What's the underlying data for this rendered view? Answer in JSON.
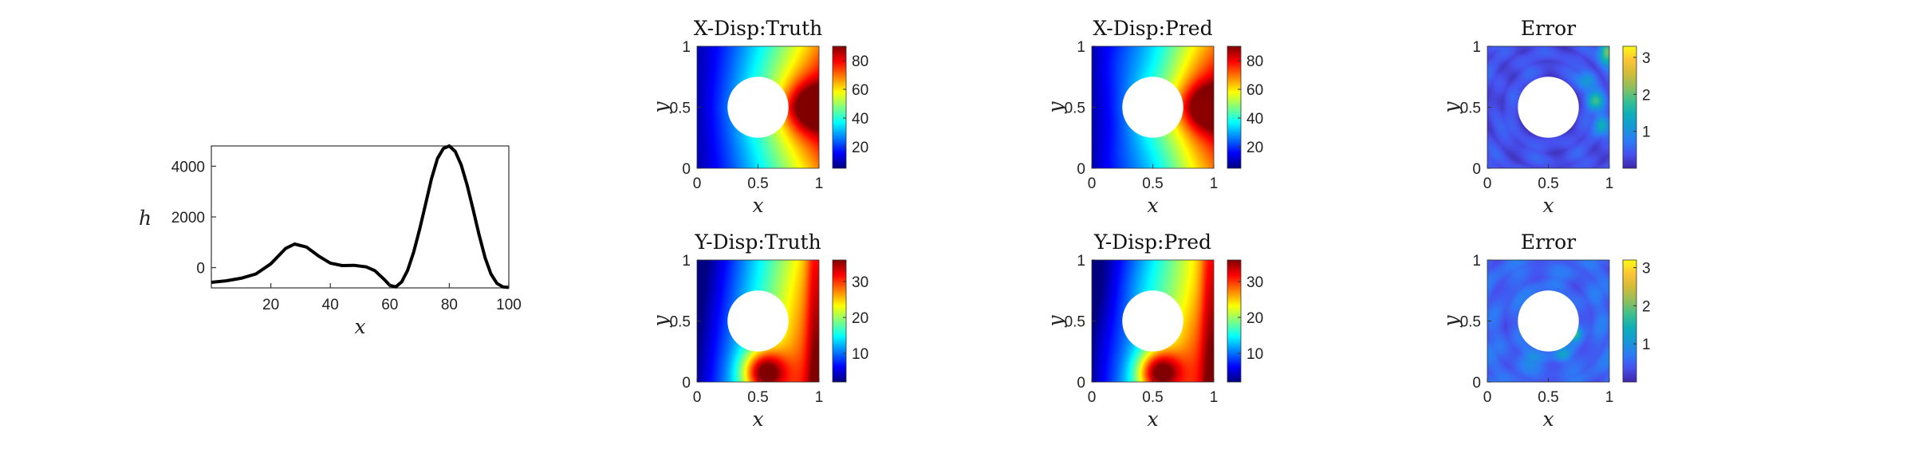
{
  "colors": {
    "line": "#000000",
    "axis": "#333333",
    "hole": "#ffffff",
    "background": "#ffffff"
  },
  "chart_data": [
    {
      "id": "h-curve",
      "type": "line",
      "title": "",
      "xlabel": "x",
      "ylabel": "h",
      "xlim": [
        0,
        100
      ],
      "ylim": [
        -800,
        4800
      ],
      "xticks": [
        "20",
        "40",
        "60",
        "80",
        "100"
      ],
      "yticks": [
        "0",
        "2000",
        "4000"
      ],
      "series": [
        {
          "x": [
            0,
            5,
            10,
            15,
            20,
            25,
            28,
            32,
            36,
            40,
            44,
            48,
            52,
            55,
            58,
            60,
            62,
            64,
            66,
            68,
            70,
            72,
            74,
            76,
            78,
            80,
            82,
            84,
            86,
            88,
            90,
            92,
            94,
            96,
            98,
            100
          ],
          "y": [
            -580,
            -520,
            -420,
            -250,
            150,
            760,
            930,
            810,
            460,
            180,
            80,
            90,
            30,
            -120,
            -450,
            -700,
            -760,
            -560,
            -100,
            600,
            1500,
            2500,
            3500,
            4300,
            4700,
            4800,
            4580,
            4050,
            3250,
            2300,
            1300,
            400,
            -250,
            -620,
            -760,
            -780
          ]
        }
      ]
    },
    {
      "id": "x-disp-truth",
      "type": "heatmap",
      "title": "X-Disp:Truth",
      "xlabel": "x",
      "ylabel": "y",
      "xlim": [
        0,
        1
      ],
      "ylim": [
        0,
        1
      ],
      "xticks": [
        "0",
        "0.5",
        "1"
      ],
      "yticks": [
        "0",
        "0.5",
        "1"
      ],
      "colormap": "jet",
      "clim": [
        5,
        90
      ],
      "colorbar_ticks": [
        "20",
        "40",
        "60",
        "80"
      ],
      "hole": {
        "center": [
          0.5,
          0.5
        ],
        "radius": 0.25
      }
    },
    {
      "id": "x-disp-pred",
      "type": "heatmap",
      "title": "X-Disp:Pred",
      "xlabel": "x",
      "ylabel": "y",
      "xlim": [
        0,
        1
      ],
      "ylim": [
        0,
        1
      ],
      "xticks": [
        "0",
        "0.5",
        "1"
      ],
      "yticks": [
        "0",
        "0.5",
        "1"
      ],
      "colormap": "jet",
      "clim": [
        5,
        90
      ],
      "colorbar_ticks": [
        "20",
        "40",
        "60",
        "80"
      ],
      "hole": {
        "center": [
          0.5,
          0.5
        ],
        "radius": 0.25
      }
    },
    {
      "id": "x-error",
      "type": "heatmap",
      "title": "Error",
      "xlabel": "x",
      "ylabel": "y",
      "xlim": [
        0,
        1
      ],
      "ylim": [
        0,
        1
      ],
      "xticks": [
        "0",
        "0.5",
        "1"
      ],
      "yticks": [
        "0",
        "0.5",
        "1"
      ],
      "colormap": "parula",
      "clim": [
        0,
        3.3
      ],
      "colorbar_ticks": [
        "1",
        "2",
        "3"
      ],
      "hole": {
        "center": [
          0.5,
          0.5
        ],
        "radius": 0.25
      }
    },
    {
      "id": "y-disp-truth",
      "type": "heatmap",
      "title": "Y-Disp:Truth",
      "xlabel": "x",
      "ylabel": "y",
      "xlim": [
        0,
        1
      ],
      "ylim": [
        0,
        1
      ],
      "xticks": [
        "0",
        "0.5",
        "1"
      ],
      "yticks": [
        "0",
        "0.5",
        "1"
      ],
      "colormap": "jet",
      "clim": [
        2,
        36
      ],
      "colorbar_ticks": [
        "10",
        "20",
        "30"
      ],
      "hole": {
        "center": [
          0.5,
          0.5
        ],
        "radius": 0.25
      }
    },
    {
      "id": "y-disp-pred",
      "type": "heatmap",
      "title": "Y-Disp:Pred",
      "xlabel": "x",
      "ylabel": "y",
      "xlim": [
        0,
        1
      ],
      "ylim": [
        0,
        1
      ],
      "xticks": [
        "0",
        "0.5",
        "1"
      ],
      "yticks": [
        "0",
        "0.5",
        "1"
      ],
      "colormap": "jet",
      "clim": [
        2,
        36
      ],
      "colorbar_ticks": [
        "10",
        "20",
        "30"
      ],
      "hole": {
        "center": [
          0.5,
          0.5
        ],
        "radius": 0.25
      }
    },
    {
      "id": "y-error",
      "type": "heatmap",
      "title": "Error",
      "xlabel": "x",
      "ylabel": "y",
      "xlim": [
        0,
        1
      ],
      "ylim": [
        0,
        1
      ],
      "xticks": [
        "0",
        "0.5",
        "1"
      ],
      "yticks": [
        "0",
        "0.5",
        "1"
      ],
      "colormap": "parula",
      "clim": [
        0,
        3.2
      ],
      "colorbar_ticks": [
        "1",
        "2",
        "3"
      ],
      "hole": {
        "center": [
          0.5,
          0.5
        ],
        "radius": 0.25
      }
    }
  ]
}
